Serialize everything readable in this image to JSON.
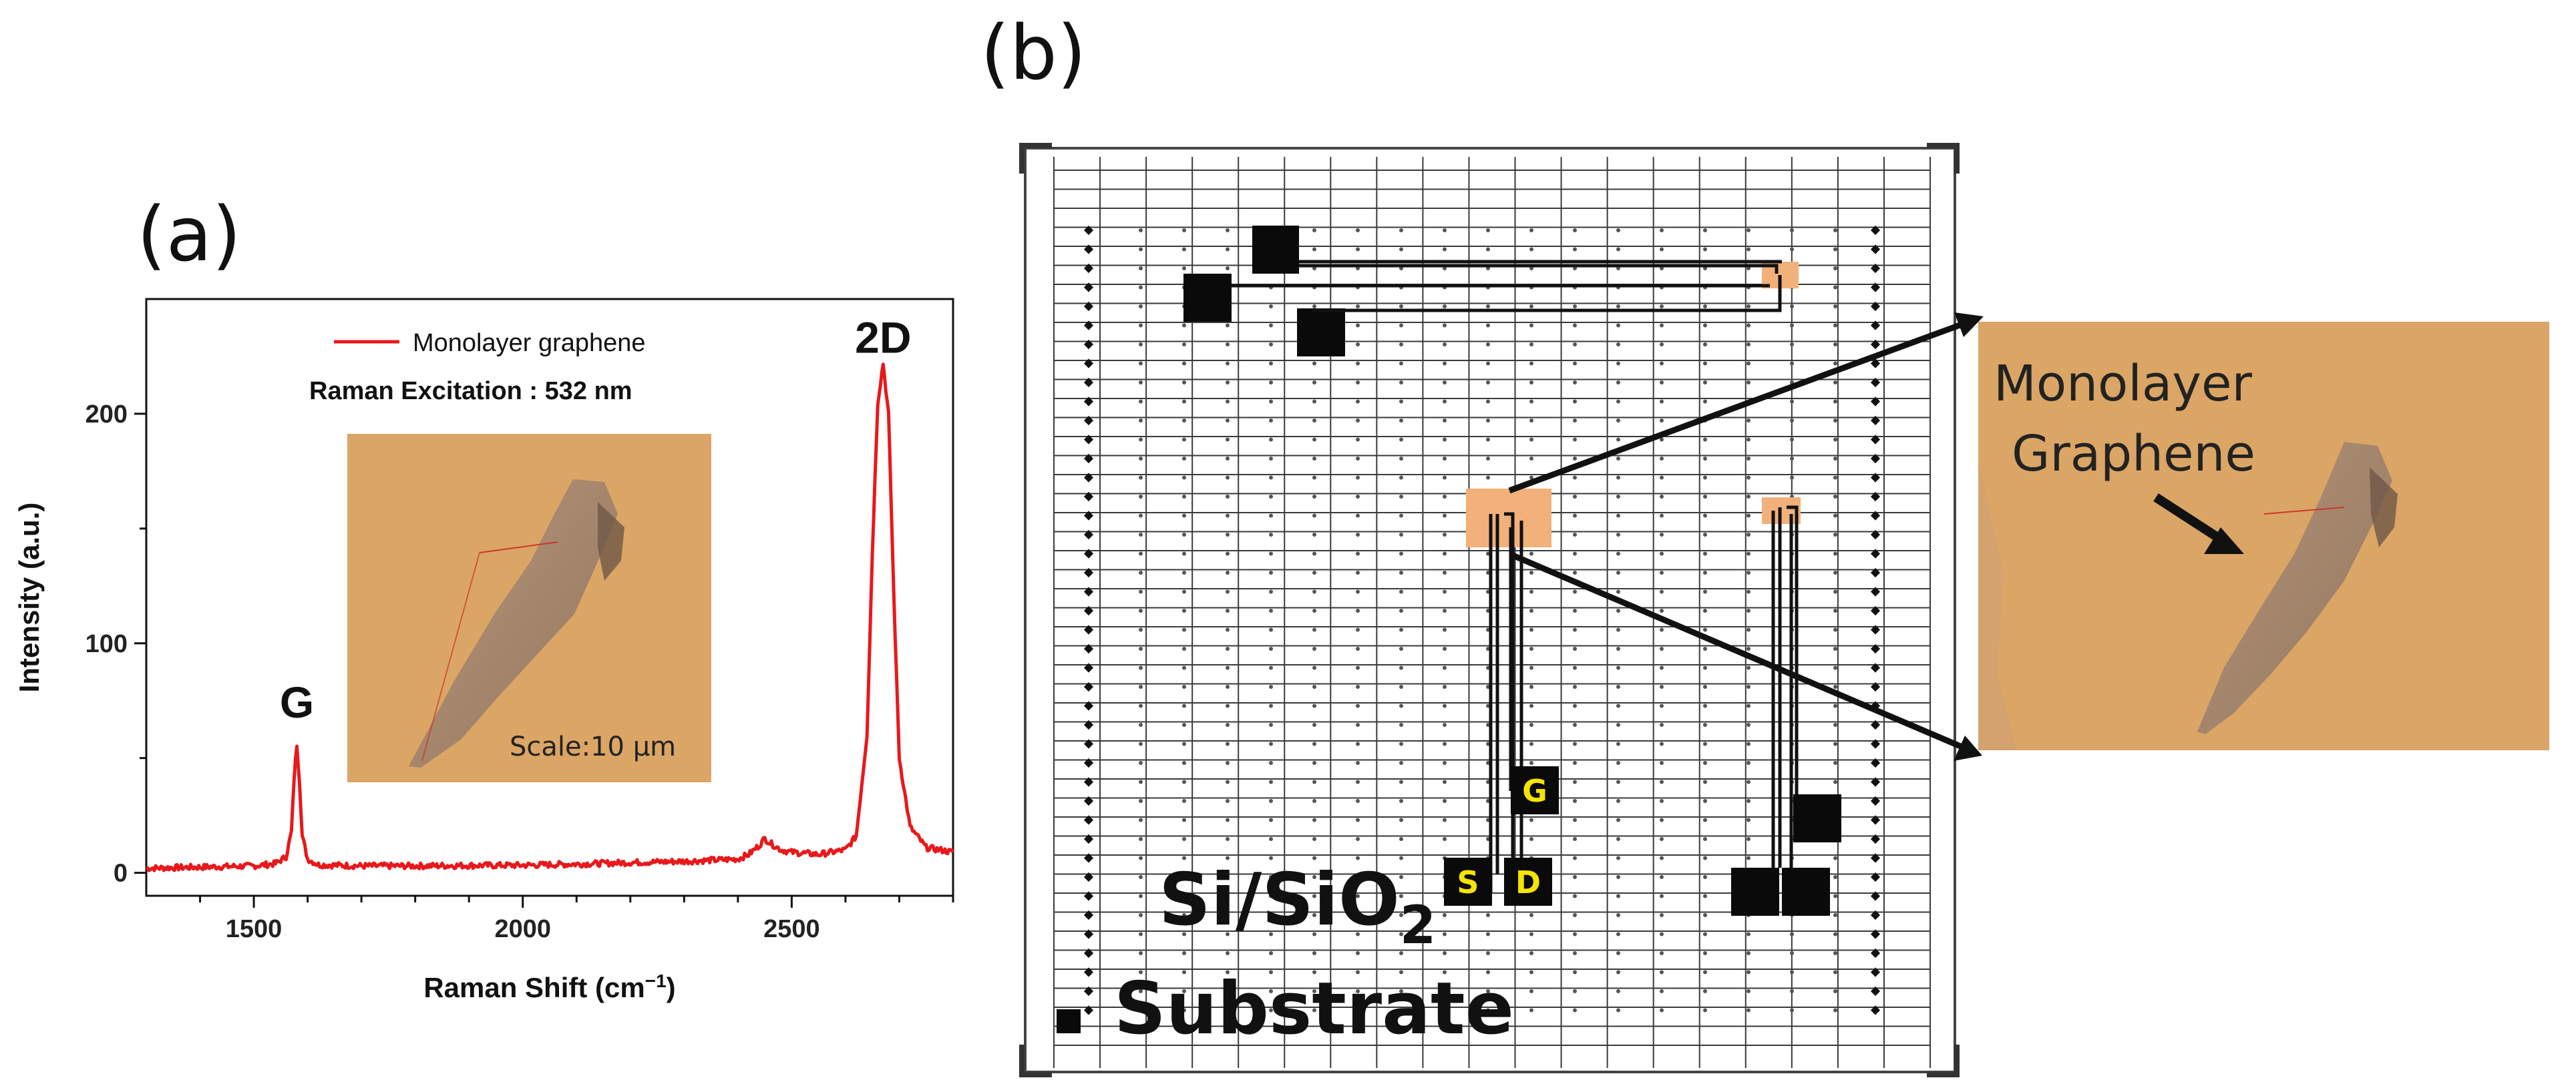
{
  "figure": {
    "panel_a_label": "(a)",
    "panel_b_label": "(b)"
  },
  "chart_data": {
    "type": "line",
    "title": "",
    "xlabel": "Raman Shift (cm",
    "xlabel_sup": "−1",
    "xlabel_suffix": ")",
    "ylabel": "Intensity (a.u.)",
    "xlim": [
      1300,
      2800
    ],
    "ylim": [
      -10,
      250
    ],
    "xticks": [
      1500,
      2000,
      2500
    ],
    "xtick_labels": [
      "1500",
      "2000",
      "2500"
    ],
    "yticks": [
      0,
      100,
      200
    ],
    "ytick_labels": [
      "0",
      "100",
      "200"
    ],
    "series": [
      {
        "name": "Monolayer graphene",
        "color": "#e8181b",
        "x": [
          1300,
          1400,
          1500,
          1540,
          1560,
          1570,
          1575,
          1580,
          1585,
          1590,
          1600,
          1620,
          1700,
          1800,
          1900,
          2000,
          2100,
          2200,
          2300,
          2400,
          2420,
          2440,
          2450,
          2460,
          2480,
          2500,
          2550,
          2600,
          2620,
          2640,
          2650,
          2660,
          2670,
          2680,
          2690,
          2700,
          2720,
          2750,
          2800
        ],
        "values": [
          2,
          2.5,
          3,
          4,
          7,
          18,
          42,
          56,
          40,
          16,
          6,
          3.5,
          3,
          3,
          3.2,
          3.3,
          3.8,
          4.5,
          5,
          6,
          8,
          12,
          15,
          13,
          10,
          9,
          8,
          10,
          16,
          60,
          140,
          205,
          222,
          200,
          120,
          50,
          20,
          11,
          9
        ]
      }
    ],
    "legend_position": "top-center",
    "annotations": [
      {
        "text": "G",
        "x": 1580,
        "y": 56
      },
      {
        "text": "2D",
        "x": 2670,
        "y": 222
      },
      {
        "text": "Raman Excitation : 532 nm"
      },
      {
        "text": "Scale:10 μm"
      }
    ]
  },
  "schematic": {
    "substrate_label": "Si/SiO",
    "substrate_sub": "2",
    "substrate_word": "Substrate",
    "pads": [
      "G",
      "S",
      "D"
    ],
    "zoom_label_line1": "Monolayer",
    "zoom_label_line2": "Graphene",
    "colors": {
      "flake_bg": "#dba565",
      "highlight": "#f2b07a",
      "pad": "#0a0a0a",
      "pad_text": "#f4e400"
    }
  }
}
